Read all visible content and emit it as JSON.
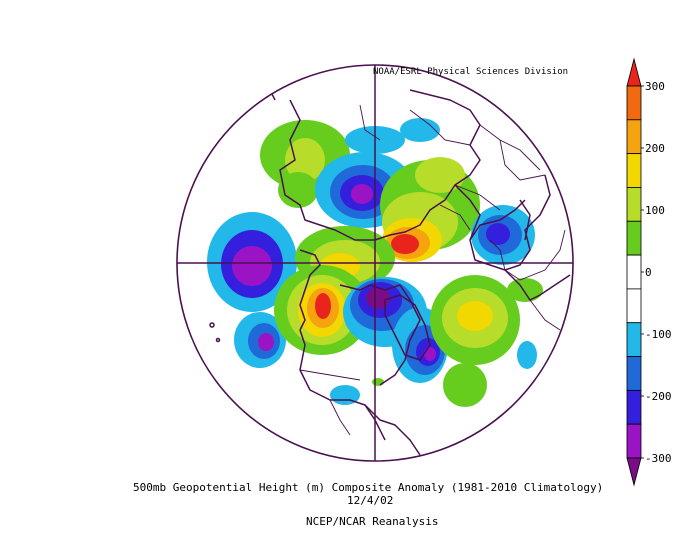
{
  "map": {
    "credit": "NOAA/ESRL Physical Sciences Division",
    "title": "500mb Geopotential Height (m) Composite Anomaly (1981-2010 Climatology)",
    "date": "12/4/02",
    "source": "NCEP/NCAR Reanalysis",
    "projection": "north polar stereographic",
    "colorbar": {
      "ticks": [
        "300",
        "200",
        "100",
        "0",
        "-100",
        "-200",
        "-300"
      ],
      "colors": [
        "#e8241c",
        "#f26a10",
        "#f5a30e",
        "#f2d700",
        "#b8dc2a",
        "#66cc1e",
        "#ffffff",
        "#ffffff",
        "#22b8ea",
        "#1f6ad8",
        "#3420dc",
        "#9a14c6",
        "#7a0c86"
      ]
    }
  }
}
